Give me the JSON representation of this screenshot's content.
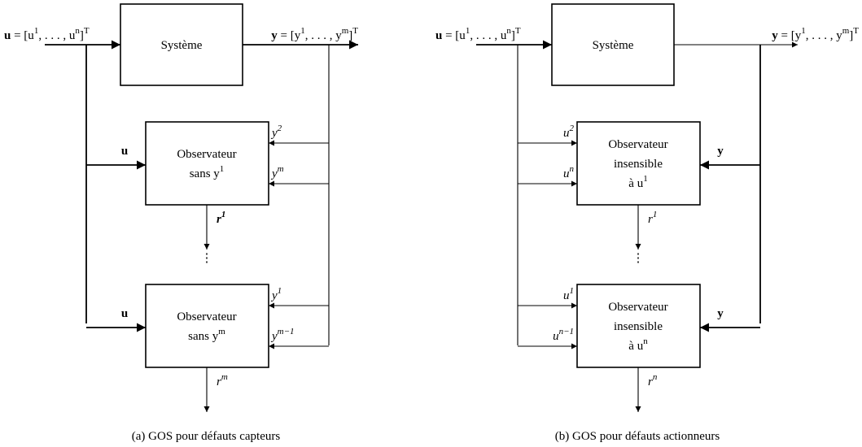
{
  "diagrams": [
    {
      "caption": "(a) GOS pour défauts capteurs",
      "system": "Système",
      "input_symbol": "u",
      "input_label": [
        " = [u",
        "1",
        ", . . . , u",
        "n",
        "]",
        "T"
      ],
      "output_symbol": "y",
      "output_label": [
        " = [y",
        "1",
        ", . . . , y",
        "m",
        "]",
        "T"
      ],
      "common_input": "u",
      "dots": "⋮",
      "observers": [
        {
          "lines": [
            [
              "Observateur"
            ],
            [
              "sans y",
              "1"
            ]
          ],
          "inputs": [
            [
              "y",
              "2"
            ],
            [
              "y",
              "m"
            ]
          ],
          "output": [
            "r",
            "1"
          ]
        },
        {
          "lines": [
            [
              "Observateur"
            ],
            [
              "sans y",
              "m"
            ]
          ],
          "inputs": [
            [
              "y",
              "1"
            ],
            [
              "y",
              "m−1"
            ]
          ],
          "output": [
            "r",
            "m"
          ]
        }
      ]
    },
    {
      "caption": "(b) GOS pour défauts actionneurs",
      "system": "Système",
      "input_symbol": "u",
      "input_label": [
        " = [u",
        "1",
        ", . . . , u",
        "n",
        "]",
        "T"
      ],
      "output_symbol": "y",
      "output_label": [
        " = [y",
        "1",
        ", . . . , y",
        "m",
        "]",
        "T"
      ],
      "common_input": "y",
      "dots": "⋮",
      "observers": [
        {
          "lines": [
            [
              "Observateur"
            ],
            [
              "insensible"
            ],
            [
              "à u",
              "1"
            ]
          ],
          "inputs": [
            [
              "u",
              "2"
            ],
            [
              "u",
              "n"
            ]
          ],
          "output": [
            "r",
            "1"
          ]
        },
        {
          "lines": [
            [
              "Observateur"
            ],
            [
              "insensible"
            ],
            [
              "à u",
              "n"
            ]
          ],
          "inputs": [
            [
              "u",
              "1"
            ],
            [
              "u",
              "n−1"
            ]
          ],
          "output": [
            "r",
            "n"
          ]
        }
      ]
    }
  ]
}
